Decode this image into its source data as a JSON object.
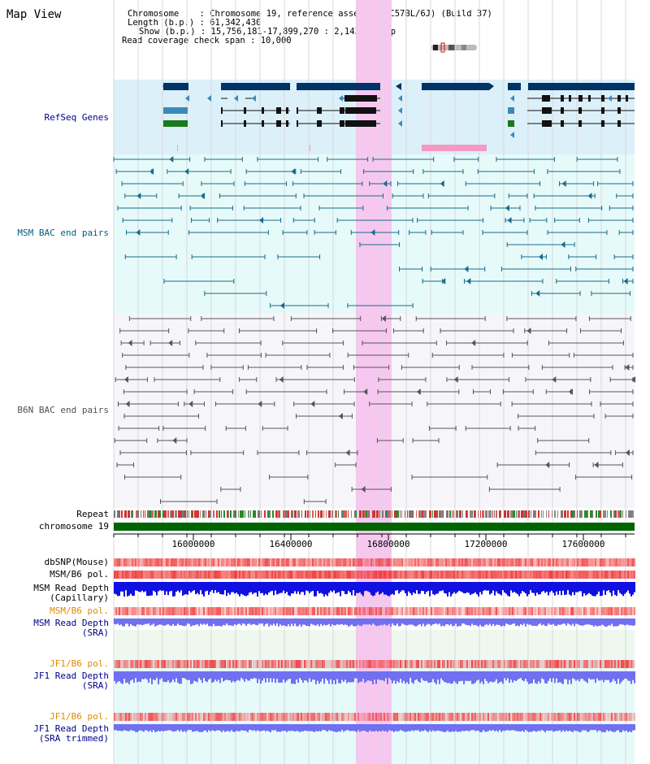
{
  "page_title": "Map View",
  "info": {
    "chromosome_label": "Chromosome",
    "chromosome_value": "Chromosome 19, reference assembly (C57BL/6J) (Build 37)",
    "length_label": "Length (b.p.)",
    "length_value": "61,342,430",
    "show_label": "Show (b.p.)",
    "show_value": "15,756,181-17,899,270 : 2,143,090 bp",
    "span_label": "Read coverage check span",
    "span_value": "10,000"
  },
  "tracks": {
    "refseq": "RefSeq Genes",
    "msm_bac": "MSM BAC end pairs",
    "b6n_bac": "B6N BAC end pairs",
    "repeat": "Repeat",
    "chromosome": "chromosome 19",
    "dbsnp": "dbSNP(Mouse)",
    "msm_b6_pol_1": "MSM/B6 pol.",
    "msm_depth_cap_1": "MSM Read Depth",
    "msm_depth_cap_2": "(Capillary)",
    "msm_b6_pol_2": "MSM/B6 pol.",
    "msm_depth_sra_1": "MSM Read Depth",
    "msm_depth_sra_2": "(SRA)",
    "jf1_pol_1": "JF1/B6 pol.",
    "jf1_depth_sra_1": "JF1 Read Depth",
    "jf1_depth_sra_2": "(SRA)",
    "jf1_pol_2": "JF1/B6 pol.",
    "jf1_depth_trim_1": "JF1 Read Depth",
    "jf1_depth_trim_2": "(SRA trimmed)"
  },
  "axis": {
    "start_bp": 15756181,
    "end_bp": 17899270,
    "ticks": [
      "16000000",
      "16400000",
      "16800000",
      "17200000",
      "17600000"
    ]
  },
  "colors": {
    "refseq_bg": "#dcf0fa",
    "msm_bg": "#e6fafa",
    "highlight": "#f6c8f0",
    "gene_dark": "#003366",
    "gene_mid": "#3a8ab8",
    "gene_green": "#1a7a1a",
    "msm_line": "#1a6a8a",
    "b6n_line": "#555555",
    "chrom_bar": "#006400",
    "snp_red": "#f04040",
    "depth_blue": "#1010e0",
    "depth_light": "#7070f0"
  }
}
